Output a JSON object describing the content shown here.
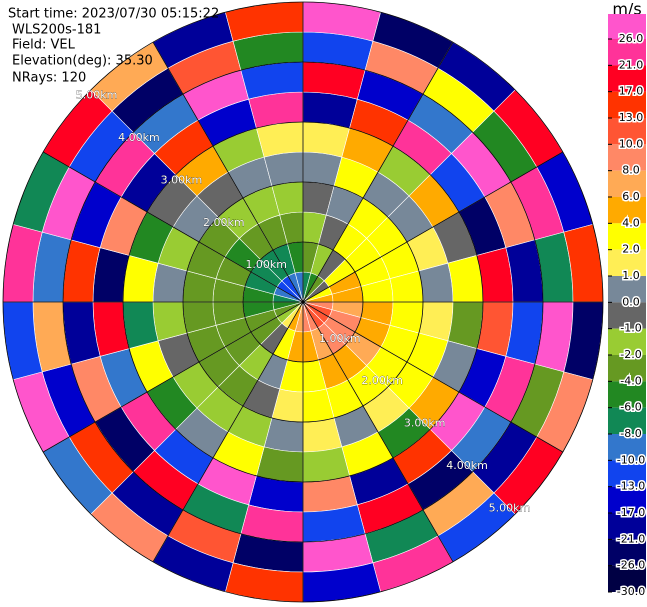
{
  "chart_data": {
    "type": "polar",
    "header": [
      "Start time: 2023/07/30 05:15:22",
      "WLS200s-181",
      "Field: VEL",
      "Elevation(deg): 35.30",
      "NRays: 120"
    ],
    "rlim": [
      0,
      5
    ],
    "rticks": [
      {
        "value": 1,
        "label": "1.00km"
      },
      {
        "value": 2,
        "label": "2.00km"
      },
      {
        "value": 3,
        "label": "3.00km"
      },
      {
        "value": 4,
        "label": "4.00km"
      },
      {
        "value": 5,
        "label": "5.00km"
      }
    ],
    "azimuths": [
      7.5,
      22.5,
      37.5,
      52.5,
      67.5,
      82.5,
      97.5,
      112.5,
      127.5,
      142.5,
      157.5,
      172.5,
      187.5,
      202.5,
      217.5,
      232.5,
      247.5,
      262.5,
      277.5,
      292.5,
      307.5,
      322.5,
      337.5,
      352.5
    ],
    "ranges": [
      0.25,
      0.75,
      1.25,
      1.75,
      2.25,
      2.75,
      3.25,
      3.75,
      4.25,
      4.75
    ],
    "values": [
      [
        -8,
        -4,
        -2,
        -1,
        0,
        1,
        -21,
        17,
        -13,
        26
      ],
      [
        -6,
        -2,
        -1,
        0,
        2,
        4,
        13,
        -17,
        8,
        -26
      ],
      [
        -4,
        -1,
        2,
        3,
        0,
        -2,
        21,
        -10,
        3,
        -21
      ],
      [
        -1,
        3,
        3,
        2,
        0,
        5,
        -13,
        26,
        -6,
        17
      ],
      [
        2,
        4,
        3,
        2,
        1,
        -1,
        -26,
        8,
        21,
        -17
      ],
      [
        5,
        4,
        3,
        2,
        0,
        3,
        17,
        -21,
        -8,
        13
      ],
      [
        8,
        6,
        4,
        3,
        1,
        -3,
        10,
        -13,
        26,
        -26
      ],
      [
        10,
        8,
        5,
        3,
        2,
        0,
        -17,
        21,
        -4,
        8
      ],
      [
        11,
        9,
        6,
        3,
        2,
        4,
        26,
        -10,
        -21,
        17
      ],
      [
        10,
        8,
        5,
        3,
        1,
        -6,
        13,
        -26,
        6,
        -13
      ],
      [
        9,
        7,
        4,
        2,
        0,
        3,
        -21,
        17,
        -8,
        21
      ],
      [
        8,
        5,
        3,
        2,
        1,
        -2,
        8,
        -13,
        26,
        -17
      ],
      [
        6,
        4,
        2,
        1,
        0,
        -3,
        -17,
        21,
        -26,
        13
      ],
      [
        4,
        2,
        0,
        -1,
        -2,
        2,
        26,
        -8,
        10,
        -21
      ],
      [
        1,
        -1,
        -2,
        -3,
        -2,
        0,
        -13,
        17,
        -21,
        8
      ],
      [
        -2,
        -3,
        -3,
        -4,
        -2,
        -6,
        21,
        -26,
        13,
        -10
      ],
      [
        -4,
        -4,
        -3,
        -3,
        -1,
        3,
        -10,
        8,
        -17,
        26
      ],
      [
        -6,
        -5,
        -4,
        -3,
        -2,
        -8,
        17,
        -21,
        6,
        -13
      ],
      [
        -8,
        -6,
        -4,
        -3,
        0,
        2,
        -26,
        13,
        -10,
        21
      ],
      [
        -10,
        -7,
        -4,
        -3,
        -2,
        -5,
        8,
        -17,
        26,
        -8
      ],
      [
        -11,
        -8,
        -5,
        -3,
        0,
        -1,
        -21,
        21,
        -13,
        17
      ],
      [
        -11,
        -8,
        -4,
        -2,
        -1,
        4,
        13,
        -10,
        -26,
        6
      ],
      [
        -10,
        -7,
        -4,
        -2,
        0,
        -2,
        -17,
        26,
        10,
        -21
      ],
      [
        -9,
        -6,
        -3,
        -2,
        0,
        1,
        21,
        -13,
        -6,
        13
      ]
    ],
    "colorbar": {
      "unit": "m/s",
      "ticks": [
        {
          "value": 26,
          "label": "26.0"
        },
        {
          "value": 21,
          "label": "21.0"
        },
        {
          "value": 17,
          "label": "17.0"
        },
        {
          "value": 13,
          "label": "13.0"
        },
        {
          "value": 10,
          "label": "10.0"
        },
        {
          "value": 8,
          "label": "8.0"
        },
        {
          "value": 6,
          "label": "6.0"
        },
        {
          "value": 4,
          "label": "4.0"
        },
        {
          "value": 2,
          "label": "2.0"
        },
        {
          "value": 1,
          "label": "1.0"
        },
        {
          "value": 0,
          "label": "0.0"
        },
        {
          "value": -1,
          "label": "-1.0"
        },
        {
          "value": -2,
          "label": "-2.0"
        },
        {
          "value": -4,
          "label": "-4.0"
        },
        {
          "value": -6,
          "label": "-6.0"
        },
        {
          "value": -8,
          "label": "-8.0"
        },
        {
          "value": -10,
          "label": "-10.0"
        },
        {
          "value": -13,
          "label": "-13.0"
        },
        {
          "value": -17,
          "label": "-17.0"
        },
        {
          "value": -21,
          "label": "-21.0"
        },
        {
          "value": -26,
          "label": "-26.0"
        },
        {
          "value": -30,
          "label": "-30.0"
        }
      ],
      "colors": [
        "#ff55cc",
        "#ff3399",
        "#ff0022",
        "#ff3300",
        "#ff5533",
        "#ff8866",
        "#ffaa55",
        "#ffaa00",
        "#ffff00",
        "#ffee55",
        "#778899",
        "#666666",
        "#99cc33",
        "#669922",
        "#228822",
        "#118855",
        "#3377cc",
        "#1144ee",
        "#0000cc",
        "#000099",
        "#000066",
        "#000044"
      ]
    }
  }
}
